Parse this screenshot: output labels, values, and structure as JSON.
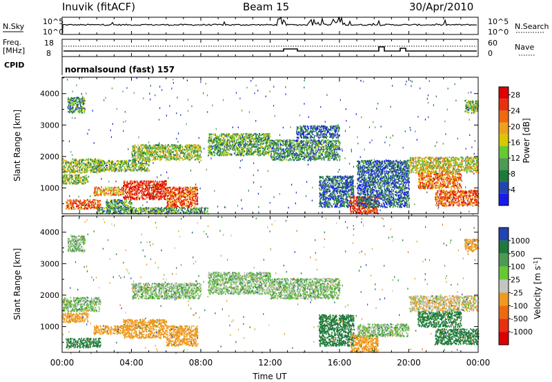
{
  "header": {
    "station": "Inuvik (fitACF)",
    "beam": "Beam 15",
    "date": "30/Apr/2010"
  },
  "strip": {
    "nsky_label": "N.Sky",
    "nsky_ticks": [
      "10^5",
      "10^0"
    ],
    "nsearch_label": "N.Search",
    "nsearch_ticks": [
      "10^5",
      "10^0"
    ],
    "freq_label": "Freq.",
    "freq_unit": "[MHz]",
    "freq_ticks": [
      "18",
      "8"
    ],
    "nave_label": "Nave",
    "nave_ticks": [
      "60",
      "0"
    ],
    "cpid_label": "CPID",
    "cpid_text": "normalsound (fast) 157"
  },
  "colors": {
    "power": [
      "#1a1aee",
      "#2244b0",
      "#1e7a3a",
      "#4d9a55",
      "#66c933",
      "#d8c800",
      "#f0a020",
      "#ee6a10",
      "#e83010",
      "#dd0000"
    ],
    "velocity": [
      "#2244b0",
      "#1e7a3a",
      "#4d9a55",
      "#66c933",
      "#c4c4c0",
      "#ee9a20",
      "#ee6a10",
      "#e83010",
      "#dd0000"
    ]
  },
  "chart_data": [
    {
      "type": "heatmap",
      "ylabel": "Slant Range [km]",
      "xlabel": "",
      "x_ticks": [
        "00:00",
        "04:00",
        "08:00",
        "12:00",
        "16:00",
        "20:00",
        "00:00"
      ],
      "xlim_hours": [
        0,
        24
      ],
      "y_ticks": [
        1000,
        2000,
        3000,
        4000
      ],
      "ylim": [
        180,
        4520
      ],
      "colorbar": {
        "label": "Power [dB]",
        "ticks": [
          4,
          8,
          12,
          16,
          20,
          24,
          28
        ],
        "range": [
          0,
          30
        ]
      },
      "regions": [
        {
          "t": [
            0,
            2.2
          ],
          "r": [
            1500,
            1950
          ],
          "p": 14
        },
        {
          "t": [
            0,
            1.5
          ],
          "r": [
            1150,
            1450
          ],
          "p": 14
        },
        {
          "t": [
            0.2,
            2.2
          ],
          "r": [
            350,
            650
          ],
          "p": 24
        },
        {
          "t": [
            2.5,
            4.0
          ],
          "r": [
            350,
            650
          ],
          "p": 10
        },
        {
          "t": [
            1.8,
            3.5
          ],
          "r": [
            780,
            1050
          ],
          "p": 20
        },
        {
          "t": [
            3.5,
            6.0
          ],
          "r": [
            650,
            1250
          ],
          "p": 27
        },
        {
          "t": [
            6.0,
            7.8
          ],
          "r": [
            400,
            1050
          ],
          "p": 24
        },
        {
          "t": [
            2.0,
            8.4
          ],
          "r": [
            200,
            400
          ],
          "p": 10
        },
        {
          "t": [
            2.0,
            5.0
          ],
          "r": [
            1550,
            1900
          ],
          "p": 12
        },
        {
          "t": [
            4.0,
            8.0
          ],
          "r": [
            1900,
            2400
          ],
          "p": 14
        },
        {
          "t": [
            8.4,
            12.0
          ],
          "r": [
            2050,
            2750
          ],
          "p": 11
        },
        {
          "t": [
            12.0,
            16.0
          ],
          "r": [
            1900,
            2550
          ],
          "p": 9
        },
        {
          "t": [
            13.5,
            16.0
          ],
          "r": [
            2600,
            3000
          ],
          "p": 6
        },
        {
          "t": [
            14.8,
            16.8
          ],
          "r": [
            400,
            1400
          ],
          "p": 6
        },
        {
          "t": [
            16.6,
            18.2
          ],
          "r": [
            200,
            750
          ],
          "p": 26
        },
        {
          "t": [
            17.0,
            20.0
          ],
          "r": [
            400,
            1900
          ],
          "p": 6
        },
        {
          "t": [
            20.0,
            24.0
          ],
          "r": [
            1500,
            2000
          ],
          "p": 16
        },
        {
          "t": [
            20.5,
            23.0
          ],
          "r": [
            1000,
            1500
          ],
          "p": 22
        },
        {
          "t": [
            21.5,
            24.0
          ],
          "r": [
            450,
            950
          ],
          "p": 24
        },
        {
          "t": [
            0.3,
            1.3
          ],
          "r": [
            3400,
            3900
          ],
          "p": 10
        },
        {
          "t": [
            23.2,
            24.0
          ],
          "r": [
            3400,
            3800
          ],
          "p": 12
        }
      ]
    },
    {
      "type": "heatmap",
      "ylabel": "Slant Range [km]",
      "xlabel": "Time UT",
      "x_ticks": [
        "00:00",
        "04:00",
        "08:00",
        "12:00",
        "16:00",
        "20:00",
        "00:00"
      ],
      "xlim_hours": [
        0,
        24
      ],
      "y_ticks": [
        1000,
        2000,
        3000,
        4000
      ],
      "ylim": [
        180,
        4520
      ],
      "colorbar": {
        "label": "Velocity [m s^-1]",
        "ticks": [
          1000,
          500,
          100,
          25,
          -25,
          -100,
          -500,
          -1000
        ]
      },
      "regions": [
        {
          "t": [
            0,
            2.2
          ],
          "r": [
            1500,
            1950
          ],
          "v": 0
        },
        {
          "t": [
            0,
            1.5
          ],
          "r": [
            1150,
            1450
          ],
          "v": -200
        },
        {
          "t": [
            0.2,
            2.2
          ],
          "r": [
            350,
            650
          ],
          "v": 150
        },
        {
          "t": [
            1.8,
            3.5
          ],
          "r": [
            780,
            1050
          ],
          "v": -250
        },
        {
          "t": [
            3.5,
            6.0
          ],
          "r": [
            650,
            1250
          ],
          "v": -250
        },
        {
          "t": [
            6.0,
            7.8
          ],
          "r": [
            400,
            1050
          ],
          "v": -200
        },
        {
          "t": [
            4.0,
            8.0
          ],
          "r": [
            1900,
            2400
          ],
          "v": 0
        },
        {
          "t": [
            8.4,
            12.0
          ],
          "r": [
            2050,
            2750
          ],
          "v": 0
        },
        {
          "t": [
            12.0,
            16.0
          ],
          "r": [
            1900,
            2550
          ],
          "v": 0
        },
        {
          "t": [
            14.8,
            16.8
          ],
          "r": [
            400,
            1400
          ],
          "v": 200
        },
        {
          "t": [
            16.6,
            18.2
          ],
          "r": [
            200,
            750
          ],
          "v": -250
        },
        {
          "t": [
            17.0,
            20.0
          ],
          "r": [
            700,
            1100
          ],
          "v": 0
        },
        {
          "t": [
            20.0,
            24.0
          ],
          "r": [
            1500,
            2000
          ],
          "v": -80
        },
        {
          "t": [
            20.5,
            23.0
          ],
          "r": [
            1000,
            1500
          ],
          "v": 150
        },
        {
          "t": [
            21.5,
            24.0
          ],
          "r": [
            450,
            950
          ],
          "v": 200
        },
        {
          "t": [
            0.3,
            1.3
          ],
          "r": [
            3400,
            3900
          ],
          "v": 0
        },
        {
          "t": [
            23.2,
            24.0
          ],
          "r": [
            3400,
            3800
          ],
          "v": -200
        }
      ]
    }
  ]
}
